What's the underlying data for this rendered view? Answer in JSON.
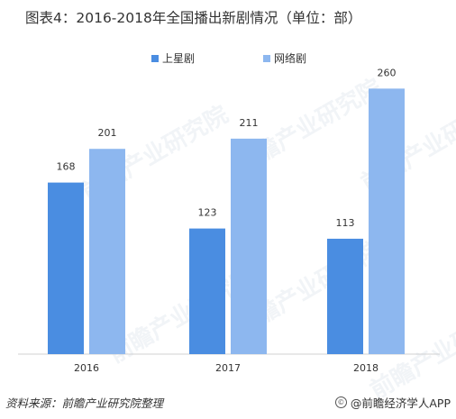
{
  "chart_data": {
    "type": "bar",
    "title": "图表4：2016-2018年全国播出新剧情况（单位：部）",
    "categories": [
      "2016",
      "2017",
      "2018"
    ],
    "series": [
      {
        "name": "上星剧",
        "values": [
          168,
          123,
          113
        ],
        "color": "#4a8de1"
      },
      {
        "name": "网络剧",
        "values": [
          201,
          211,
          260
        ],
        "color": "#8db7ef"
      }
    ],
    "ylim": [
      0,
      300
    ],
    "grid": false,
    "legend_position": "top-center",
    "xlabel": "",
    "ylabel": ""
  },
  "watermark": {
    "text": "前瞻产业研究院"
  },
  "footer": {
    "source": "资料来源：前瞻产业研究院整理",
    "credit": "@前瞻经济学人APP",
    "credit_icon": "copyright-icon"
  }
}
